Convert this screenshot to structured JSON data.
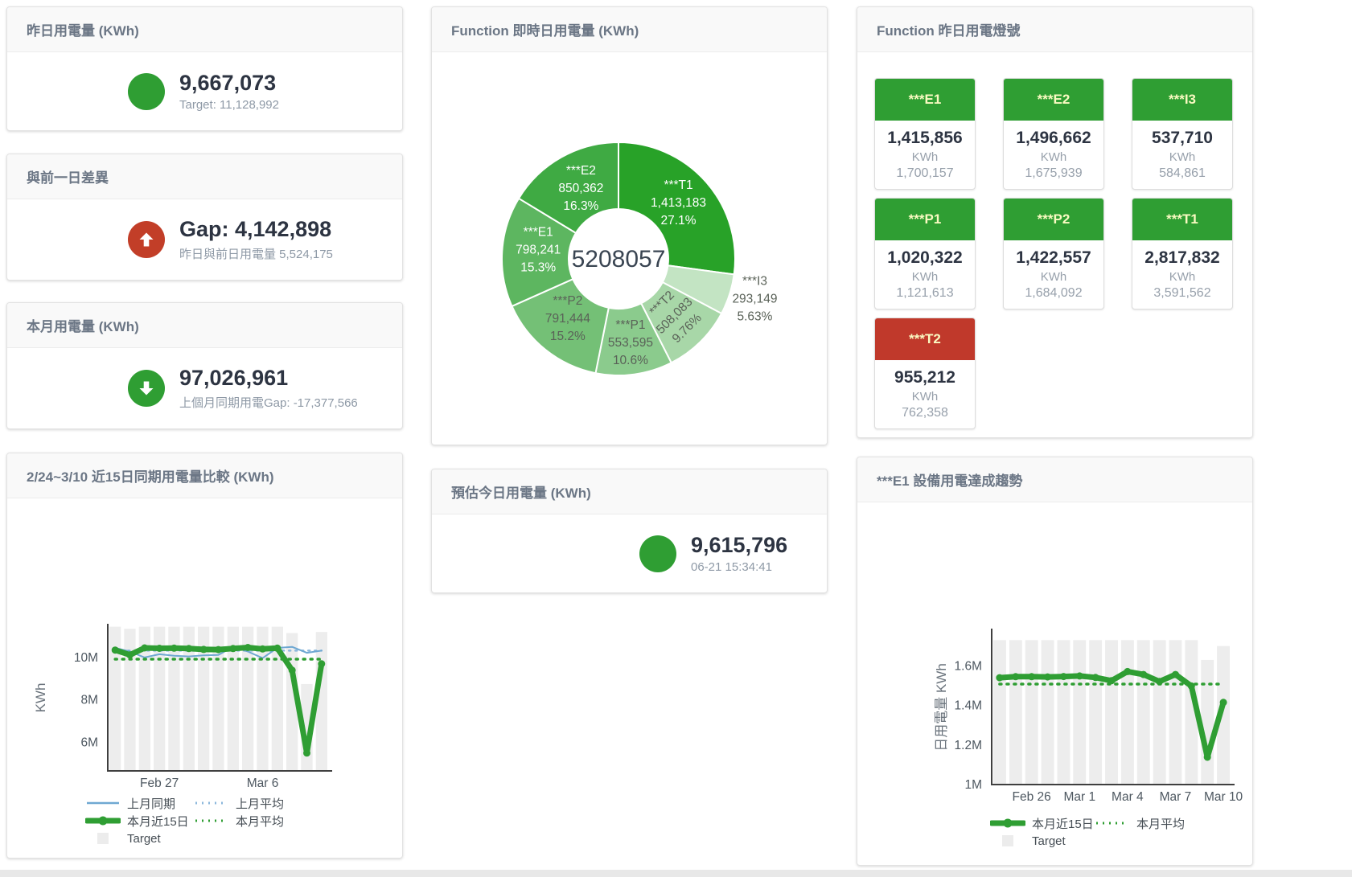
{
  "colors": {
    "green": "#2f9e33",
    "red": "#c23e28",
    "tile_red": "#c0392b",
    "blue_line": "#6fa8d2",
    "blue_dashed": "#8cb8dc",
    "target_bar": "#ededed",
    "axis": "#3f3f3f",
    "tick_text": "#4d5760",
    "donut_label_dark": "#5a6258"
  },
  "stat_cards": {
    "yesterday": {
      "title": "昨日用電量 (KWh)",
      "value": "9,667,073",
      "subtitle": "Target: 11,128,992",
      "indicator": "green",
      "arrow": "none"
    },
    "day_gap": {
      "title": "與前一日差異",
      "value": "Gap: 4,142,898",
      "subtitle": "昨日與前日用電量 5,524,175",
      "indicator": "red",
      "arrow": "up"
    },
    "month": {
      "title": "本月用電量 (KWh)",
      "value": "97,026,961",
      "subtitle": "上個月同期用電Gap: -17,377,566",
      "indicator": "green",
      "arrow": "down"
    },
    "estimate": {
      "title": "預估今日用電量 (KWh)",
      "value": "9,615,796",
      "subtitle": "06-21 15:34:41",
      "indicator": "green",
      "arrow": "none"
    }
  },
  "donut_card": {
    "title": "Function 即時日用電量 (KWh)"
  },
  "lights_card": {
    "title": "Function 昨日用電燈號",
    "unit": "KWh",
    "tiles": [
      {
        "label": "***E1",
        "value": "1,415,856",
        "target": "1,700,157",
        "status": "green"
      },
      {
        "label": "***E2",
        "value": "1,496,662",
        "target": "1,675,939",
        "status": "green"
      },
      {
        "label": "***I3",
        "value": "537,710",
        "target": "584,861",
        "status": "green"
      },
      {
        "label": "***P1",
        "value": "1,020,322",
        "target": "1,121,613",
        "status": "green"
      },
      {
        "label": "***P2",
        "value": "1,422,557",
        "target": "1,684,092",
        "status": "green"
      },
      {
        "label": "***T1",
        "value": "2,817,832",
        "target": "3,591,562",
        "status": "green"
      },
      {
        "label": "***T2",
        "value": "955,212",
        "target": "762,358",
        "status": "red"
      }
    ]
  },
  "compare_card": {
    "title": "2/24~3/10 近15日同期用電量比較 (KWh)"
  },
  "trend_card": {
    "title": "***E1 設備用電達成趨勢"
  },
  "chart_data": [
    {
      "id": "donut",
      "type": "pie",
      "title": "Function 即時日用電量 (KWh)",
      "center_total": "5208057",
      "slices": [
        {
          "label": "***T1",
          "value": 1413183,
          "pct": "27.1%",
          "color": "#28a228",
          "label_color": "#ffffff",
          "label_r": 99,
          "rotate": 0,
          "outside": false
        },
        {
          "label": "***I3",
          "value": 293149,
          "pct": "5.63%",
          "color": "#c3e4c3",
          "label_color": "#5a6258",
          "label_r": 178,
          "rotate": 0,
          "outside": true
        },
        {
          "label": "***T2",
          "value": 508083,
          "pct": "9.76%",
          "color": "#a8d7a8",
          "label_color": "#5a6258",
          "label_r": 104,
          "rotate": -45,
          "outside": false
        },
        {
          "label": "***P1",
          "value": 553595,
          "pct": "10.6%",
          "color": "#8bcb8d",
          "label_color": "#5a6258",
          "label_r": 110,
          "rotate": 0,
          "outside": false
        },
        {
          "label": "***P2",
          "value": 791444,
          "pct": "15.2%",
          "color": "#74c076",
          "label_color": "#5a6258",
          "label_r": 101,
          "rotate": 0,
          "outside": false
        },
        {
          "label": "***E1",
          "value": 798241,
          "pct": "15.3%",
          "color": "#5db660",
          "label_color": "#ffffff",
          "label_r": 100,
          "rotate": 0,
          "outside": false
        },
        {
          "label": "***E2",
          "value": 850362,
          "pct": "16.3%",
          "color": "#3faa43",
          "label_color": "#ffffff",
          "label_r": 95,
          "rotate": 0,
          "outside": false
        }
      ]
    },
    {
      "id": "compare15",
      "type": "line+bar",
      "title": "2/24~3/10 近15日同期用電量比較 (KWh)",
      "ylabel": "KWh",
      "values_unit": "millions KWh",
      "ylim": [
        4.66,
        11.51
      ],
      "yticks": [
        {
          "v": 6,
          "label": "6M"
        },
        {
          "v": 8,
          "label": "8M"
        },
        {
          "v": 10,
          "label": "10M"
        }
      ],
      "categories": [
        "2/24",
        "2/25",
        "2/26",
        "2/27",
        "2/28",
        "3/1",
        "3/2",
        "3/3",
        "3/4",
        "3/5",
        "3/6",
        "3/7",
        "3/8",
        "3/9",
        "3/10"
      ],
      "xticks": [
        {
          "i": 3,
          "label": "Feb 27"
        },
        {
          "i": 10,
          "label": "Mar 6"
        }
      ],
      "bars": {
        "key": "target",
        "name": "Target",
        "color": "#ededed",
        "values": [
          11.45,
          11.35,
          11.45,
          11.45,
          11.45,
          11.45,
          11.45,
          11.45,
          11.45,
          11.45,
          11.45,
          11.45,
          11.15,
          8.75,
          11.2
        ]
      },
      "series": [
        {
          "key": "prev-month-avg",
          "name": "上月平均",
          "color": "#8cb8dc",
          "width": 2.5,
          "dash": "2 6",
          "markers": false,
          "constant": 10.32
        },
        {
          "key": "prev-month-line",
          "name": "上月同期",
          "color": "#6fa8d2",
          "width": 2,
          "dash": null,
          "markers": false,
          "values": [
            10.45,
            10.28,
            10.0,
            10.15,
            10.08,
            10.05,
            10.1,
            10.12,
            10.5,
            10.28,
            9.97,
            10.45,
            10.5,
            10.22,
            10.32
          ]
        },
        {
          "key": "this-month-avg",
          "name": "本月平均",
          "color": "#2f9e33",
          "width": 3.5,
          "dash": "2 7",
          "markers": false,
          "constant": 9.92
        },
        {
          "key": "this-month-line",
          "name": "本月近15日",
          "color": "#2f9e33",
          "width": 7,
          "dash": null,
          "markers": true,
          "values": [
            10.35,
            10.12,
            10.45,
            10.43,
            10.44,
            10.42,
            10.38,
            10.37,
            10.42,
            10.47,
            10.4,
            10.44,
            9.4,
            5.5,
            9.7
          ]
        }
      ],
      "legend_rows": [
        [
          {
            "key": "prev-month-line",
            "swatch": "line",
            "color": "#6fa8d2",
            "label": "上月同期"
          },
          {
            "key": "prev-month-avg",
            "swatch": "dash",
            "color": "#8cb8dc",
            "label": "上月平均"
          }
        ],
        [
          {
            "key": "this-month-line",
            "swatch": "thick",
            "color": "#2f9e33",
            "label": "本月近15日"
          },
          {
            "key": "this-month-avg",
            "swatch": "dash",
            "color": "#2f9e33",
            "label": "本月平均"
          }
        ],
        [
          {
            "key": "target",
            "swatch": "square",
            "color": "#ececec",
            "label": "Target"
          }
        ]
      ]
    },
    {
      "id": "trendE1",
      "type": "line+bar",
      "title": "***E1 設備用電達成趨勢",
      "ylabel": "日用電量 KWh",
      "values_unit": "millions KWh",
      "ylim": [
        1.0,
        1.78
      ],
      "yticks": [
        {
          "v": 1,
          "label": "1M"
        },
        {
          "v": 1.2,
          "label": "1.2M"
        },
        {
          "v": 1.4,
          "label": "1.4M"
        },
        {
          "v": 1.6,
          "label": "1.6M"
        }
      ],
      "categories": [
        "2/24",
        "2/25",
        "2/26",
        "2/27",
        "2/28",
        "3/1",
        "3/2",
        "3/3",
        "3/4",
        "3/5",
        "3/6",
        "3/7",
        "3/8",
        "3/9",
        "3/10"
      ],
      "xticks": [
        {
          "i": 2,
          "label": "Feb 26"
        },
        {
          "i": 5,
          "label": "Mar 1"
        },
        {
          "i": 8,
          "label": "Mar 4"
        },
        {
          "i": 11,
          "label": "Mar 7"
        },
        {
          "i": 14,
          "label": "Mar 10"
        }
      ],
      "bars": {
        "key": "target",
        "name": "Target",
        "color": "#ededed",
        "values": [
          1.73,
          1.73,
          1.73,
          1.73,
          1.73,
          1.73,
          1.73,
          1.73,
          1.73,
          1.73,
          1.73,
          1.73,
          1.73,
          1.63,
          1.7
        ]
      },
      "series": [
        {
          "key": "this-month-avg",
          "name": "本月平均",
          "color": "#2f9e33",
          "width": 3.5,
          "dash": "2 7",
          "markers": false,
          "constant": 1.508
        },
        {
          "key": "this-month-line",
          "name": "本月近15日",
          "color": "#2f9e33",
          "width": 7,
          "dash": null,
          "markers": true,
          "values": [
            1.54,
            1.545,
            1.545,
            1.544,
            1.546,
            1.549,
            1.541,
            1.525,
            1.571,
            1.556,
            1.521,
            1.556,
            1.498,
            1.138,
            1.415
          ]
        }
      ],
      "legend_rows": [
        [
          {
            "key": "this-month-line",
            "swatch": "thick",
            "color": "#2f9e33",
            "label": "本月近15日"
          },
          {
            "key": "this-month-avg",
            "swatch": "dash",
            "color": "#2f9e33",
            "label": "本月平均"
          }
        ],
        [
          {
            "key": "target",
            "swatch": "square",
            "color": "#ececec",
            "label": "Target"
          }
        ]
      ]
    }
  ]
}
